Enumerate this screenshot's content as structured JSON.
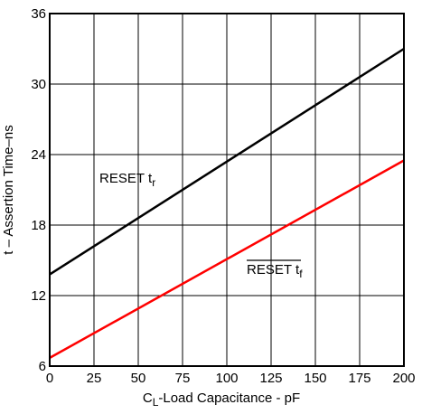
{
  "chart_data": {
    "type": "line",
    "xlabel": {
      "main": "C",
      "sub": "L",
      "rest": "-Load Capacitance - pF"
    },
    "ylabel": "t – Assertion Time–ns",
    "xlim": [
      0,
      200
    ],
    "ylim": [
      6,
      36
    ],
    "x_ticks": [
      0,
      25,
      50,
      75,
      100,
      125,
      150,
      175,
      200
    ],
    "y_ticks": [
      6,
      12,
      18,
      24,
      30,
      36
    ],
    "grid": true,
    "series": [
      {
        "name": "RESET tr",
        "label_main": "RESET",
        "label_sub": "r",
        "label_prefix": "t",
        "overline": false,
        "color": "#000000",
        "x": [
          0,
          200
        ],
        "y": [
          13.8,
          33.0
        ]
      },
      {
        "name": "RESET-bar tf",
        "label_main": "RESET",
        "label_sub": "f",
        "label_prefix": "t",
        "overline": true,
        "color": "#ff0000",
        "x": [
          0,
          200
        ],
        "y": [
          6.7,
          23.5
        ]
      }
    ]
  }
}
